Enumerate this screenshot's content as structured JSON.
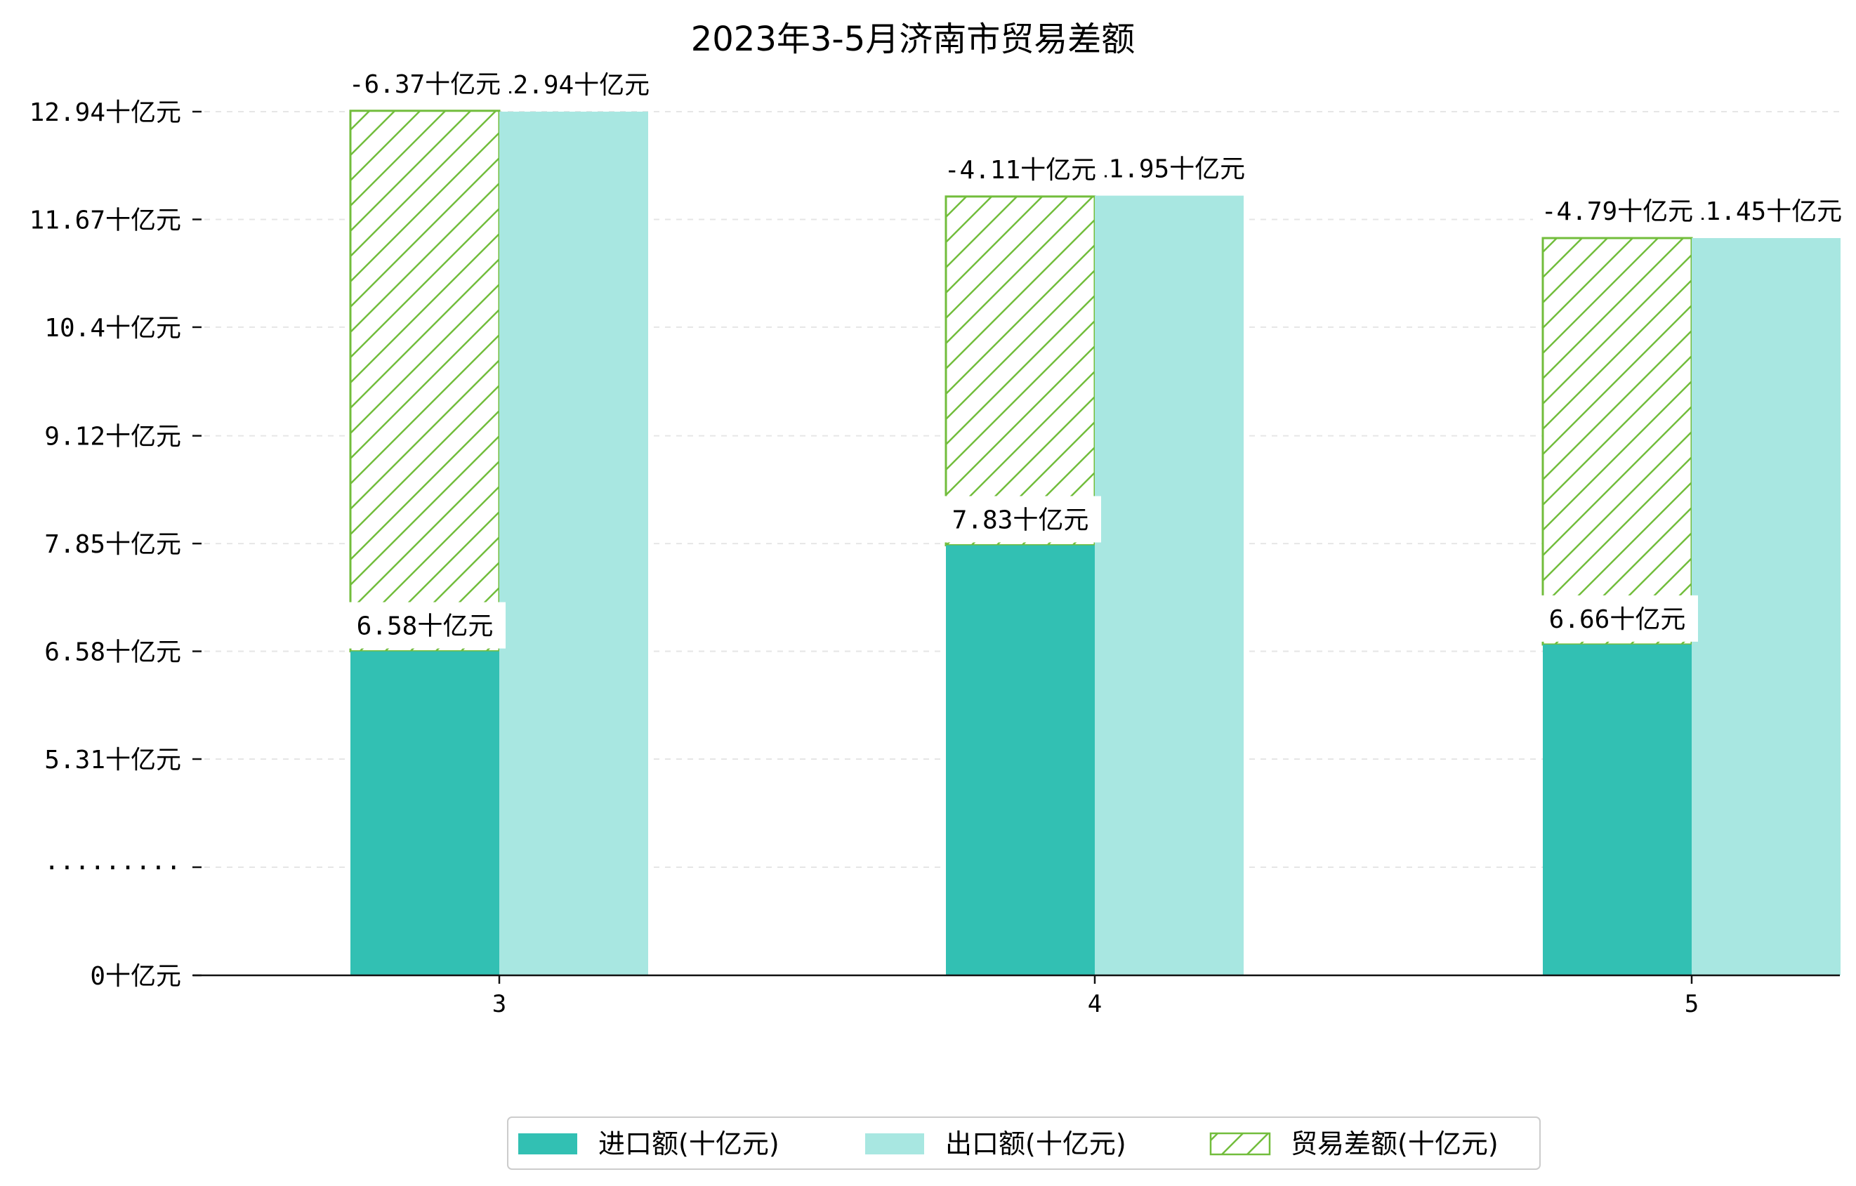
{
  "chart_data": {
    "type": "bar",
    "title": "2023年3-5月济南市贸易差额",
    "categories": [
      "3",
      "4",
      "5"
    ],
    "y_tick_labels": [
      "0十亿元",
      "·········",
      "5.31十亿元",
      "6.58十亿元",
      "7.85十亿元",
      "9.12十亿元",
      "10.4十亿元",
      "11.67十亿元",
      "12.94十亿元"
    ],
    "series": [
      {
        "name": "进口额(十亿元)",
        "values": [
          6.58,
          7.83,
          6.66
        ],
        "labels": [
          "6.58十亿元",
          "7.83十亿元",
          "6.66十亿元"
        ],
        "color": "#32c0b3"
      },
      {
        "name": "出口额(十亿元)",
        "values": [
          12.94,
          11.95,
          11.45
        ],
        "labels": [
          "12.94十亿元",
          "11.95十亿元",
          "11.45十亿元"
        ],
        "color": "#a8e7e1"
      },
      {
        "name": "贸易差额(十亿元)",
        "values": [
          -6.37,
          -4.11,
          -4.79
        ],
        "labels": [
          "-6.37十亿元",
          "-4.11十亿元",
          "-4.79十亿元"
        ],
        "color": "#72bd3c",
        "pattern": "hatch"
      }
    ],
    "legend_position": "bottom-center",
    "grid": "horizontal-dashed"
  }
}
